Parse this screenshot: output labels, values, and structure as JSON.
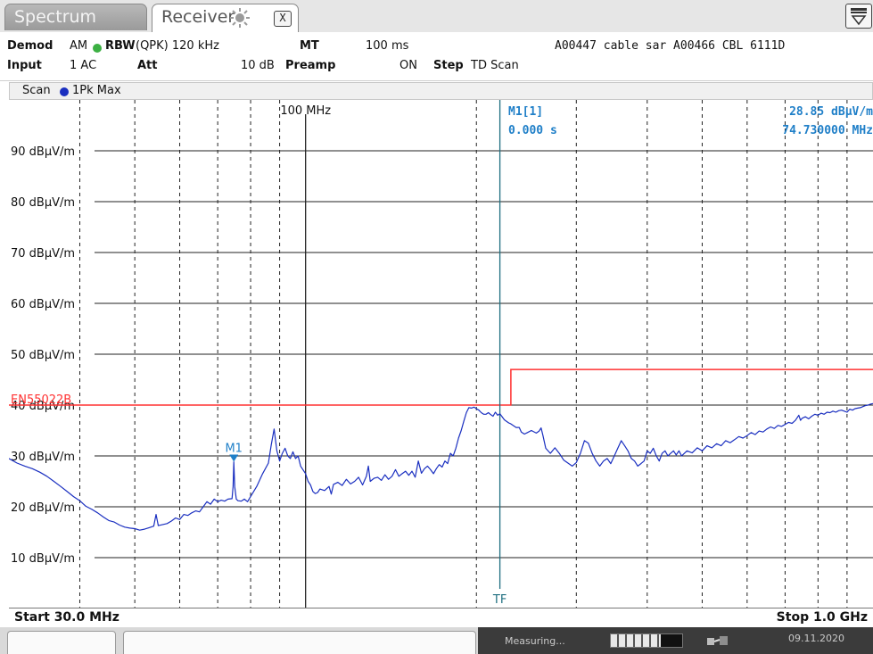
{
  "tabs": {
    "spectrum": "Spectrum",
    "receiver": "Receiver",
    "close_glyph": "X"
  },
  "info": {
    "demod_label": "Demod",
    "demod_value": "AM",
    "rbw_label": "RBW",
    "rbw_value": "(QPK) 120 kHz",
    "mt_label": "MT",
    "mt_value": "100 ms",
    "title_text": "A00447 cable sar A00466 CBL 6111D",
    "input_label": "Input",
    "input_value": "1 AC",
    "att_label": "Att",
    "att_value": "10 dB",
    "preamp_label": "Preamp",
    "preamp_value": "ON",
    "step_label": "Step",
    "step_value": "TD Scan"
  },
  "trace": {
    "scan_label": "Scan",
    "trace_label": "1Pk Max",
    "trace_color": "#1a2fc0"
  },
  "marker_readout": {
    "name": "M1[1]",
    "time": "0.000 s",
    "level": "28.85 dBµV/m",
    "freq": "74.730000 MHz",
    "color": "#1f7fc8"
  },
  "status": {
    "start": "Start 30.0 MHz",
    "stop": "Stop 1.0 GHz",
    "measuring": "Measuring...",
    "date": "09.11.2020",
    "progress": 0.7
  },
  "chart_data": {
    "type": "line",
    "xlabel_start": "Start 30.0 MHz",
    "xlabel_stop": "Stop 1.0 GHz",
    "x_scale": "log",
    "xlim": [
      30,
      1000
    ],
    "ylim": [
      0,
      100
    ],
    "y_unit": "dBµV/m",
    "y_tick_labels": [
      "90 dBµV/m",
      "80 dBµV/m",
      "70 dBµV/m",
      "60 dBµV/m",
      "50 dBµV/m",
      "40 dBµV/m",
      "30 dBµV/m",
      "20 dBµV/m",
      "10 dBµV/m"
    ],
    "y_ticks": [
      90,
      80,
      70,
      60,
      50,
      40,
      30,
      20,
      10
    ],
    "x_marker_label": "100 MHz",
    "x_marker_value": 100,
    "grid": true,
    "limit_line": {
      "name": "EN55022B",
      "color": "#ff3030",
      "points": [
        [
          30,
          40
        ],
        [
          230,
          40
        ],
        [
          230,
          47
        ],
        [
          1000,
          47
        ]
      ]
    },
    "transducer": {
      "label": "TF",
      "x": 220,
      "color": "#1f6f80"
    },
    "markers": [
      {
        "label": "M1",
        "x": 74.73,
        "y": 28.85,
        "color": "#1f7fc8"
      }
    ],
    "series": [
      {
        "color": "#1a2fc0",
        "points": [
          [
            30,
            29.5
          ],
          [
            31,
            28.6
          ],
          [
            32,
            28
          ],
          [
            33,
            27.5
          ],
          [
            34,
            26.8
          ],
          [
            35,
            26
          ],
          [
            36,
            25
          ],
          [
            37,
            24
          ],
          [
            38,
            23
          ],
          [
            39,
            22
          ],
          [
            40,
            21.2
          ],
          [
            41,
            20.1
          ],
          [
            42,
            19.5
          ],
          [
            43,
            18.8
          ],
          [
            44,
            18
          ],
          [
            45,
            17.3
          ],
          [
            46,
            17
          ],
          [
            47,
            16.4
          ],
          [
            48,
            16
          ],
          [
            49,
            15.8
          ],
          [
            50,
            15.7
          ],
          [
            51,
            15.4
          ],
          [
            52,
            15.6
          ],
          [
            53,
            15.9
          ],
          [
            54,
            16.2
          ],
          [
            54.5,
            18.5
          ],
          [
            55,
            16.3
          ],
          [
            56,
            16.5
          ],
          [
            57,
            16.7
          ],
          [
            58,
            17.2
          ],
          [
            59,
            17.8
          ],
          [
            60,
            17.5
          ],
          [
            61,
            18.5
          ],
          [
            62,
            18.3
          ],
          [
            63,
            18.8
          ],
          [
            64,
            19.2
          ],
          [
            65,
            19
          ],
          [
            66,
            20
          ],
          [
            67,
            21
          ],
          [
            68,
            20.5
          ],
          [
            69,
            21.5
          ],
          [
            70,
            21
          ],
          [
            71,
            21.3
          ],
          [
            72,
            21.1
          ],
          [
            73,
            21.5
          ],
          [
            74.2,
            21.6
          ],
          [
            74.5,
            24
          ],
          [
            74.73,
            28.85
          ],
          [
            75,
            24
          ],
          [
            75.5,
            21.5
          ],
          [
            76,
            21.2
          ],
          [
            77,
            21.1
          ],
          [
            78,
            21.5
          ],
          [
            79,
            21
          ],
          [
            80,
            22
          ],
          [
            82,
            24
          ],
          [
            84,
            26.5
          ],
          [
            86,
            28.6
          ],
          [
            87,
            32.2
          ],
          [
            88,
            35.3
          ],
          [
            89,
            31
          ],
          [
            90,
            29
          ],
          [
            91,
            30.5
          ],
          [
            92,
            31.5
          ],
          [
            93,
            30
          ],
          [
            94,
            29.5
          ],
          [
            95,
            30.8
          ],
          [
            96,
            29.5
          ],
          [
            97,
            30
          ],
          [
            98,
            28
          ],
          [
            100,
            26.5
          ],
          [
            101,
            25
          ],
          [
            102,
            24.3
          ],
          [
            103,
            23
          ],
          [
            104,
            22.6
          ],
          [
            105,
            22.8
          ],
          [
            106,
            23.5
          ],
          [
            108,
            23.2
          ],
          [
            110,
            24
          ],
          [
            111,
            22.5
          ],
          [
            112,
            24.4
          ],
          [
            114,
            24.8
          ],
          [
            116,
            24.2
          ],
          [
            118,
            25.4
          ],
          [
            120,
            24.5
          ],
          [
            122,
            25
          ],
          [
            124,
            25.8
          ],
          [
            126,
            24.3
          ],
          [
            128,
            26
          ],
          [
            129,
            28
          ],
          [
            130,
            25
          ],
          [
            132,
            25.6
          ],
          [
            134,
            25.8
          ],
          [
            136,
            25.2
          ],
          [
            138,
            26.3
          ],
          [
            140,
            25.4
          ],
          [
            142,
            26
          ],
          [
            144,
            27.3
          ],
          [
            146,
            26
          ],
          [
            148,
            26.5
          ],
          [
            150,
            27
          ],
          [
            152,
            26.2
          ],
          [
            154,
            27
          ],
          [
            156,
            25.8
          ],
          [
            158,
            29
          ],
          [
            160,
            26.6
          ],
          [
            162,
            27.5
          ],
          [
            164,
            28
          ],
          [
            166,
            27.3
          ],
          [
            168,
            26.5
          ],
          [
            170,
            27.5
          ],
          [
            172,
            28.3
          ],
          [
            174,
            27.8
          ],
          [
            176,
            29
          ],
          [
            178,
            28.5
          ],
          [
            180,
            30.5
          ],
          [
            182,
            30
          ],
          [
            184,
            31.5
          ],
          [
            186,
            33.5
          ],
          [
            188,
            35
          ],
          [
            190,
            36.8
          ],
          [
            192,
            38.5
          ],
          [
            194,
            39.5
          ],
          [
            196,
            39.4
          ],
          [
            198,
            39.6
          ],
          [
            200,
            39.3
          ],
          [
            202,
            39
          ],
          [
            204,
            38.5
          ],
          [
            206,
            38.2
          ],
          [
            208,
            38.2
          ],
          [
            210,
            38.5
          ],
          [
            212,
            38.1
          ],
          [
            214,
            37.8
          ],
          [
            216,
            38.6
          ],
          [
            218,
            38
          ],
          [
            220,
            38.3
          ],
          [
            222,
            37.7
          ],
          [
            224,
            37.1
          ],
          [
            226,
            36.8
          ],
          [
            228,
            36.5
          ],
          [
            230,
            36.3
          ],
          [
            232,
            36
          ],
          [
            235,
            35.6
          ],
          [
            238,
            35.6
          ],
          [
            240,
            34.7
          ],
          [
            243,
            34.3
          ],
          [
            246,
            34.6
          ],
          [
            250,
            35
          ],
          [
            255,
            34.5
          ],
          [
            258,
            34.9
          ],
          [
            260,
            35.5
          ],
          [
            262,
            34
          ],
          [
            265,
            31.5
          ],
          [
            270,
            30.5
          ],
          [
            275,
            31.6
          ],
          [
            280,
            30.5
          ],
          [
            285,
            29.2
          ],
          [
            290,
            28.6
          ],
          [
            295,
            28
          ],
          [
            300,
            28.7
          ],
          [
            305,
            30.5
          ],
          [
            310,
            33
          ],
          [
            315,
            32.5
          ],
          [
            320,
            30.5
          ],
          [
            325,
            29
          ],
          [
            330,
            28
          ],
          [
            335,
            29
          ],
          [
            340,
            29.5
          ],
          [
            345,
            28.5
          ],
          [
            350,
            30
          ],
          [
            355,
            31.5
          ],
          [
            360,
            33
          ],
          [
            365,
            32
          ],
          [
            370,
            31
          ],
          [
            375,
            29.5
          ],
          [
            380,
            29
          ],
          [
            385,
            28
          ],
          [
            390,
            28.5
          ],
          [
            395,
            29
          ],
          [
            400,
            31
          ],
          [
            405,
            30.5
          ],
          [
            410,
            31.5
          ],
          [
            415,
            30
          ],
          [
            420,
            29
          ],
          [
            425,
            30.5
          ],
          [
            430,
            31
          ],
          [
            435,
            30
          ],
          [
            440,
            30.5
          ],
          [
            445,
            31
          ],
          [
            450,
            30.2
          ],
          [
            455,
            31
          ],
          [
            460,
            30
          ],
          [
            470,
            31
          ],
          [
            480,
            30.6
          ],
          [
            490,
            31.6
          ],
          [
            500,
            31
          ],
          [
            510,
            32
          ],
          [
            520,
            31.6
          ],
          [
            530,
            32.4
          ],
          [
            540,
            32
          ],
          [
            550,
            33
          ],
          [
            560,
            32.6
          ],
          [
            570,
            33.2
          ],
          [
            580,
            33.8
          ],
          [
            590,
            33.5
          ],
          [
            600,
            34
          ],
          [
            610,
            34.6
          ],
          [
            620,
            34.2
          ],
          [
            630,
            34.9
          ],
          [
            640,
            34.7
          ],
          [
            650,
            35.3
          ],
          [
            660,
            35.7
          ],
          [
            670,
            35.4
          ],
          [
            680,
            36
          ],
          [
            690,
            35.8
          ],
          [
            700,
            36.2
          ],
          [
            710,
            36.6
          ],
          [
            720,
            36.4
          ],
          [
            730,
            37
          ],
          [
            740,
            38
          ],
          [
            745,
            37
          ],
          [
            750,
            37.4
          ],
          [
            760,
            37.7
          ],
          [
            770,
            37.3
          ],
          [
            780,
            37.8
          ],
          [
            790,
            38.2
          ],
          [
            800,
            38
          ],
          [
            810,
            38.4
          ],
          [
            820,
            38.2
          ],
          [
            830,
            38.6
          ],
          [
            840,
            38.5
          ],
          [
            850,
            38.8
          ],
          [
            860,
            38.6
          ],
          [
            870,
            38.9
          ],
          [
            880,
            39
          ],
          [
            890,
            38.8
          ],
          [
            900,
            38.6
          ],
          [
            910,
            39.2
          ],
          [
            920,
            39
          ],
          [
            930,
            39.3
          ],
          [
            940,
            39.4
          ],
          [
            950,
            39.5
          ],
          [
            960,
            39.7
          ],
          [
            970,
            39.9
          ],
          [
            980,
            40
          ],
          [
            990,
            40.2
          ],
          [
            1000,
            40.3
          ]
        ]
      }
    ]
  }
}
